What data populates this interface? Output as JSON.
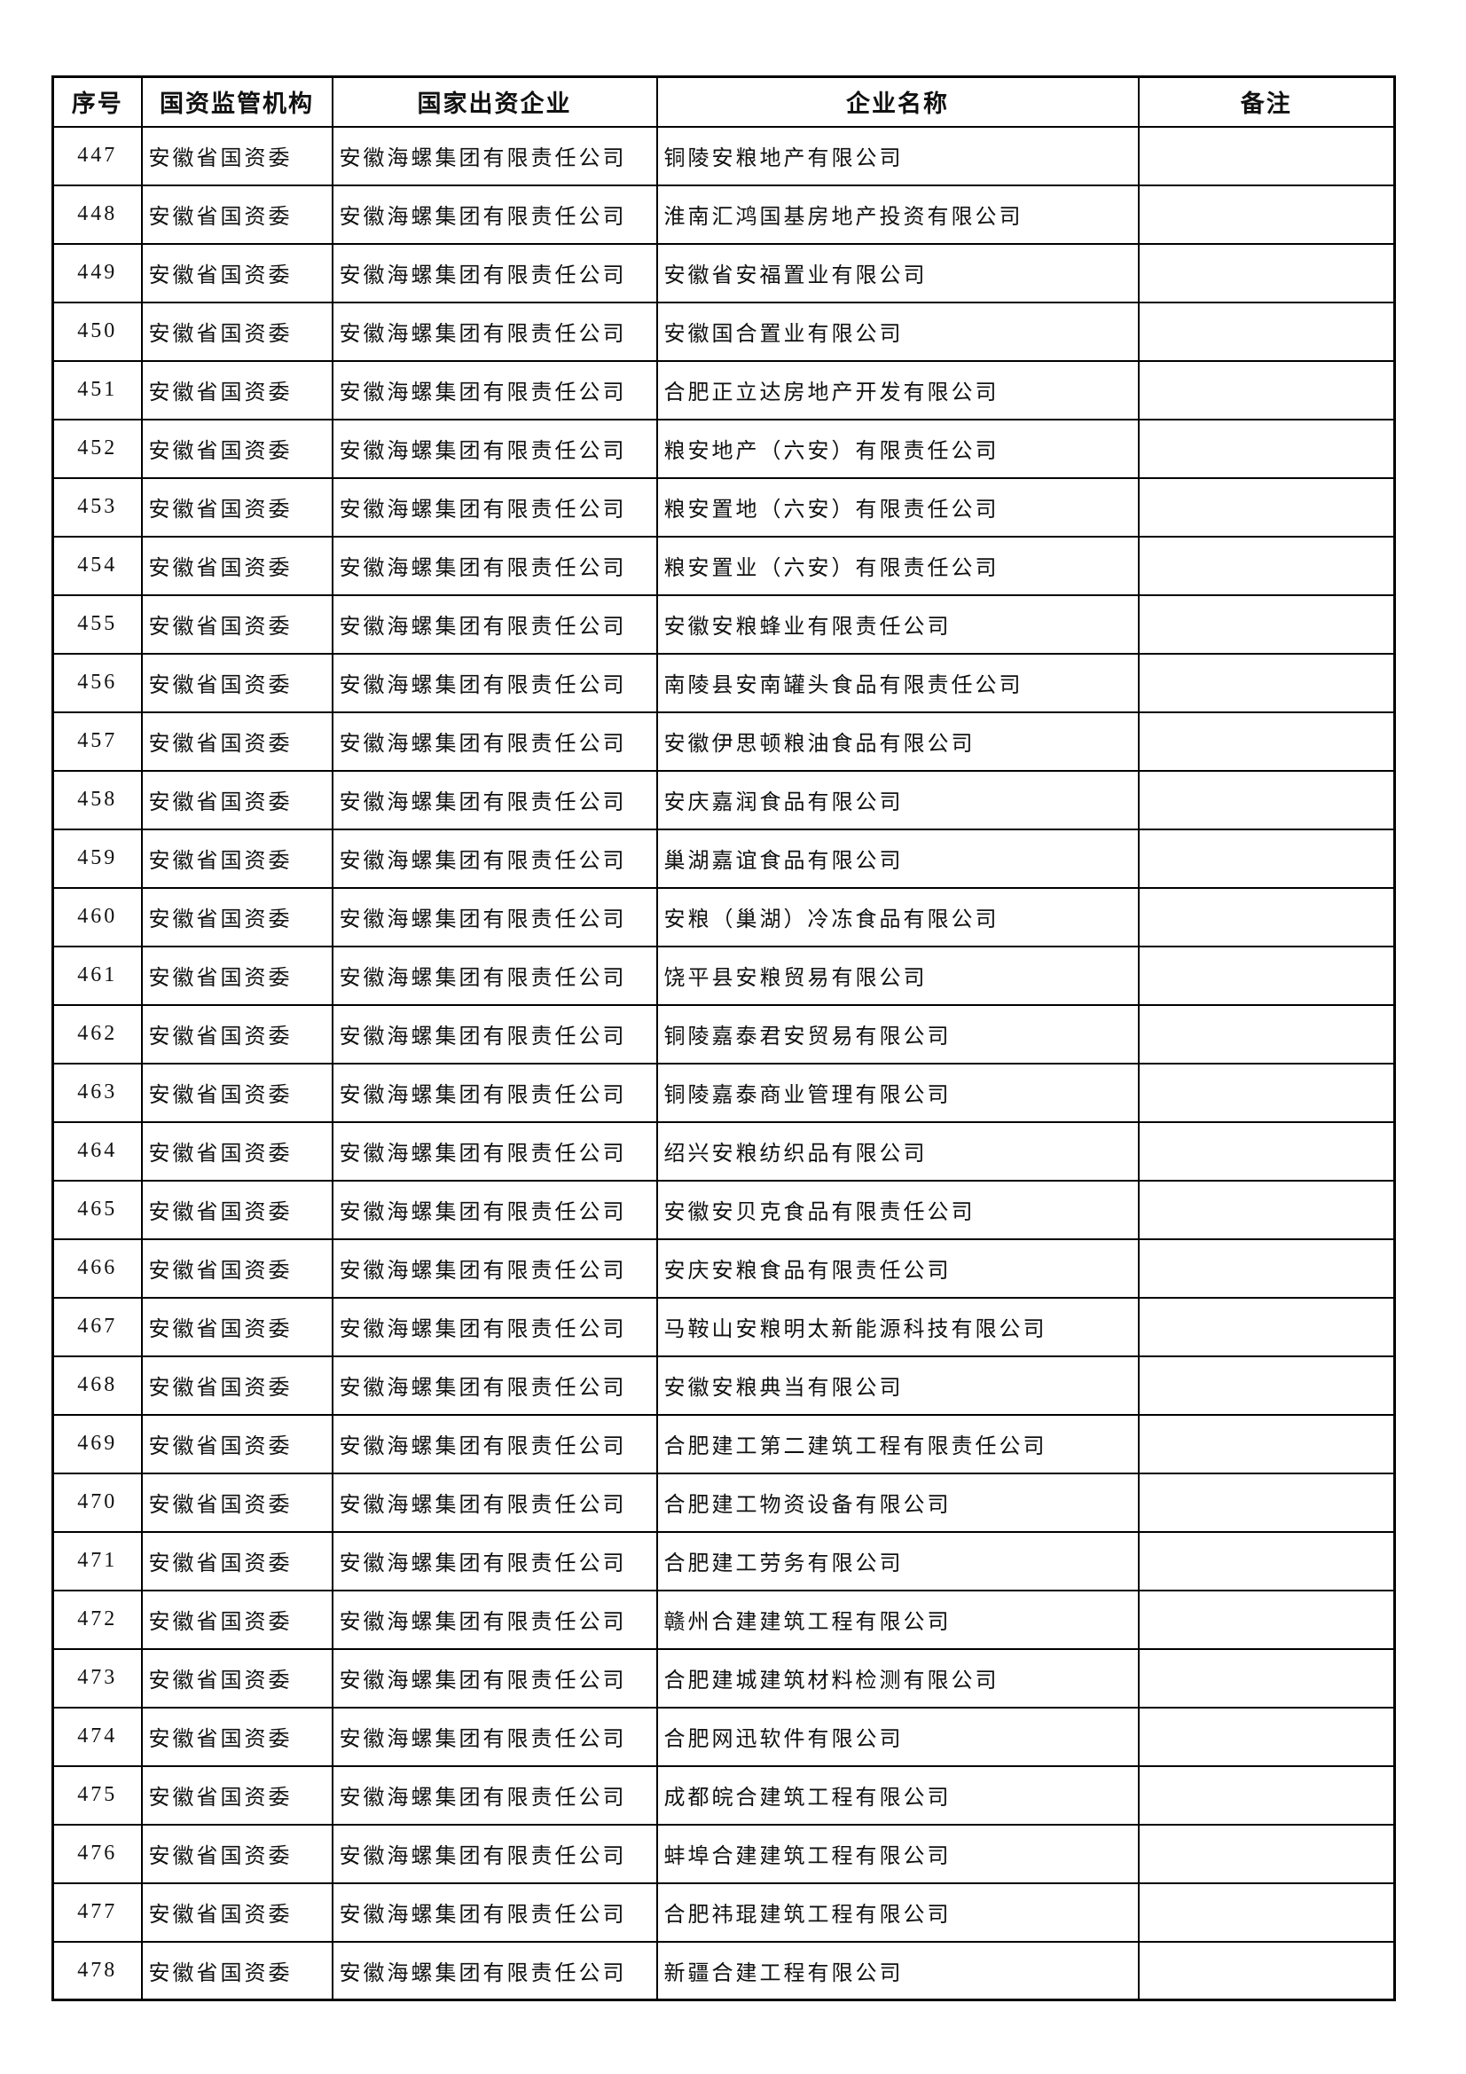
{
  "page": {
    "background_color": "#ffffff",
    "text_color": "#111111",
    "border_color": "#000000"
  },
  "table": {
    "headers": {
      "serial": "序号",
      "agency": "国资监管机构",
      "parent": "国家出资企业",
      "name": "企业名称",
      "remark": "备注"
    },
    "rows": [
      {
        "serial": "447",
        "agency": "安徽省国资委",
        "parent": "安徽海螺集团有限责任公司",
        "name": "铜陵安粮地产有限公司",
        "remark": ""
      },
      {
        "serial": "448",
        "agency": "安徽省国资委",
        "parent": "安徽海螺集团有限责任公司",
        "name": "淮南汇鸿国基房地产投资有限公司",
        "remark": ""
      },
      {
        "serial": "449",
        "agency": "安徽省国资委",
        "parent": "安徽海螺集团有限责任公司",
        "name": "安徽省安福置业有限公司",
        "remark": ""
      },
      {
        "serial": "450",
        "agency": "安徽省国资委",
        "parent": "安徽海螺集团有限责任公司",
        "name": "安徽国合置业有限公司",
        "remark": ""
      },
      {
        "serial": "451",
        "agency": "安徽省国资委",
        "parent": "安徽海螺集团有限责任公司",
        "name": "合肥正立达房地产开发有限公司",
        "remark": ""
      },
      {
        "serial": "452",
        "agency": "安徽省国资委",
        "parent": "安徽海螺集团有限责任公司",
        "name": "粮安地产（六安）有限责任公司",
        "remark": ""
      },
      {
        "serial": "453",
        "agency": "安徽省国资委",
        "parent": "安徽海螺集团有限责任公司",
        "name": "粮安置地（六安）有限责任公司",
        "remark": ""
      },
      {
        "serial": "454",
        "agency": "安徽省国资委",
        "parent": "安徽海螺集团有限责任公司",
        "name": "粮安置业（六安）有限责任公司",
        "remark": ""
      },
      {
        "serial": "455",
        "agency": "安徽省国资委",
        "parent": "安徽海螺集团有限责任公司",
        "name": "安徽安粮蜂业有限责任公司",
        "remark": ""
      },
      {
        "serial": "456",
        "agency": "安徽省国资委",
        "parent": "安徽海螺集团有限责任公司",
        "name": "南陵县安南罐头食品有限责任公司",
        "remark": ""
      },
      {
        "serial": "457",
        "agency": "安徽省国资委",
        "parent": "安徽海螺集团有限责任公司",
        "name": "安徽伊思顿粮油食品有限公司",
        "remark": ""
      },
      {
        "serial": "458",
        "agency": "安徽省国资委",
        "parent": "安徽海螺集团有限责任公司",
        "name": "安庆嘉润食品有限公司",
        "remark": ""
      },
      {
        "serial": "459",
        "agency": "安徽省国资委",
        "parent": "安徽海螺集团有限责任公司",
        "name": "巢湖嘉谊食品有限公司",
        "remark": ""
      },
      {
        "serial": "460",
        "agency": "安徽省国资委",
        "parent": "安徽海螺集团有限责任公司",
        "name": "安粮（巢湖）冷冻食品有限公司",
        "remark": ""
      },
      {
        "serial": "461",
        "agency": "安徽省国资委",
        "parent": "安徽海螺集团有限责任公司",
        "name": "饶平县安粮贸易有限公司",
        "remark": ""
      },
      {
        "serial": "462",
        "agency": "安徽省国资委",
        "parent": "安徽海螺集团有限责任公司",
        "name": "铜陵嘉泰君安贸易有限公司",
        "remark": ""
      },
      {
        "serial": "463",
        "agency": "安徽省国资委",
        "parent": "安徽海螺集团有限责任公司",
        "name": "铜陵嘉泰商业管理有限公司",
        "remark": ""
      },
      {
        "serial": "464",
        "agency": "安徽省国资委",
        "parent": "安徽海螺集团有限责任公司",
        "name": "绍兴安粮纺织品有限公司",
        "remark": ""
      },
      {
        "serial": "465",
        "agency": "安徽省国资委",
        "parent": "安徽海螺集团有限责任公司",
        "name": "安徽安贝克食品有限责任公司",
        "remark": ""
      },
      {
        "serial": "466",
        "agency": "安徽省国资委",
        "parent": "安徽海螺集团有限责任公司",
        "name": "安庆安粮食品有限责任公司",
        "remark": ""
      },
      {
        "serial": "467",
        "agency": "安徽省国资委",
        "parent": "安徽海螺集团有限责任公司",
        "name": "马鞍山安粮明太新能源科技有限公司",
        "remark": ""
      },
      {
        "serial": "468",
        "agency": "安徽省国资委",
        "parent": "安徽海螺集团有限责任公司",
        "name": "安徽安粮典当有限公司",
        "remark": ""
      },
      {
        "serial": "469",
        "agency": "安徽省国资委",
        "parent": "安徽海螺集团有限责任公司",
        "name": "合肥建工第二建筑工程有限责任公司",
        "remark": ""
      },
      {
        "serial": "470",
        "agency": "安徽省国资委",
        "parent": "安徽海螺集团有限责任公司",
        "name": "合肥建工物资设备有限公司",
        "remark": ""
      },
      {
        "serial": "471",
        "agency": "安徽省国资委",
        "parent": "安徽海螺集团有限责任公司",
        "name": "合肥建工劳务有限公司",
        "remark": ""
      },
      {
        "serial": "472",
        "agency": "安徽省国资委",
        "parent": "安徽海螺集团有限责任公司",
        "name": "赣州合建建筑工程有限公司",
        "remark": ""
      },
      {
        "serial": "473",
        "agency": "安徽省国资委",
        "parent": "安徽海螺集团有限责任公司",
        "name": "合肥建城建筑材料检测有限公司",
        "remark": ""
      },
      {
        "serial": "474",
        "agency": "安徽省国资委",
        "parent": "安徽海螺集团有限责任公司",
        "name": "合肥网迅软件有限公司",
        "remark": ""
      },
      {
        "serial": "475",
        "agency": "安徽省国资委",
        "parent": "安徽海螺集团有限责任公司",
        "name": "成都皖合建筑工程有限公司",
        "remark": ""
      },
      {
        "serial": "476",
        "agency": "安徽省国资委",
        "parent": "安徽海螺集团有限责任公司",
        "name": "蚌埠合建建筑工程有限公司",
        "remark": ""
      },
      {
        "serial": "477",
        "agency": "安徽省国资委",
        "parent": "安徽海螺集团有限责任公司",
        "name": "合肥祎琨建筑工程有限公司",
        "remark": ""
      },
      {
        "serial": "478",
        "agency": "安徽省国资委",
        "parent": "安徽海螺集团有限责任公司",
        "name": "新疆合建工程有限公司",
        "remark": ""
      }
    ]
  }
}
